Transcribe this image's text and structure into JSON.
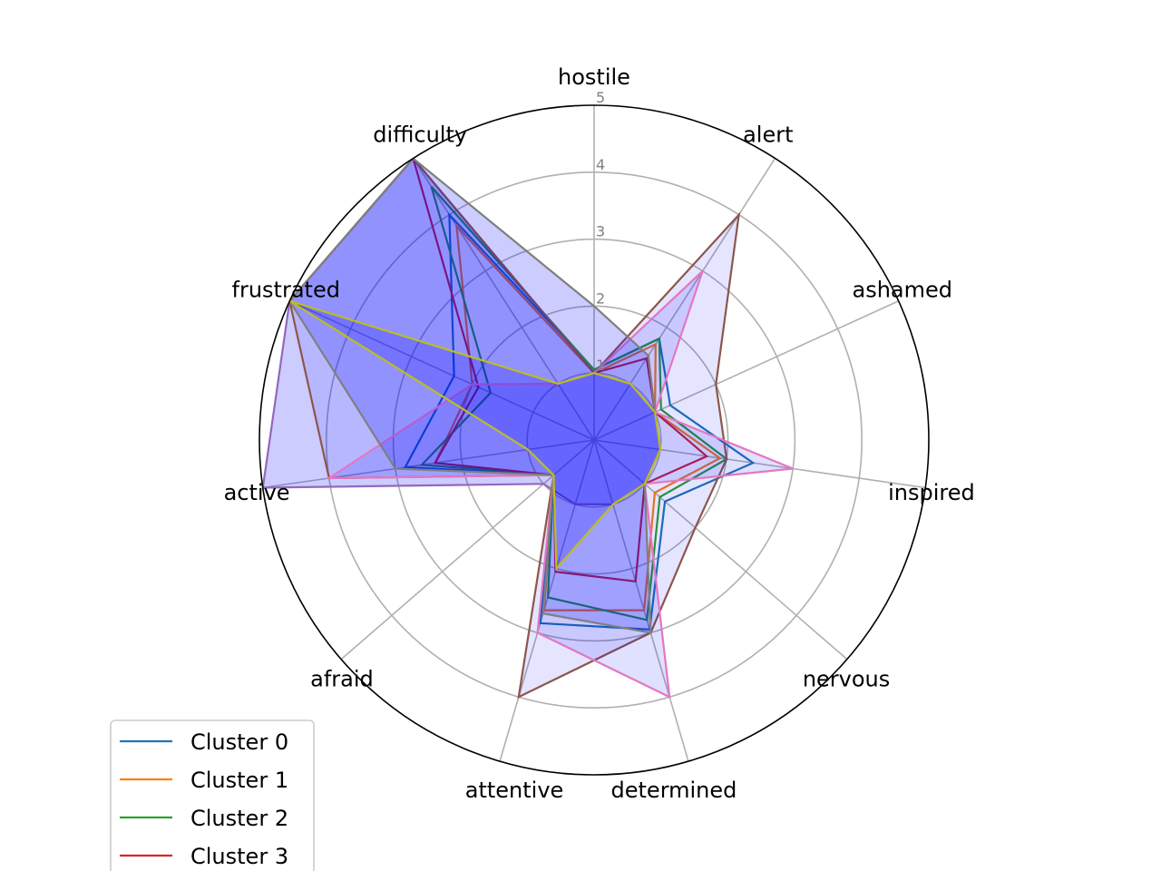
{
  "chart_data": {
    "type": "radar",
    "axes": [
      "hostile",
      "alert",
      "ashamed",
      "inspired",
      "nervous",
      "determined",
      "attentive",
      "afraid",
      "active",
      "frustrated",
      "difficulty"
    ],
    "rticks": [
      "1",
      "2",
      "3",
      "4",
      "5"
    ],
    "rlim": [
      0,
      5
    ],
    "grid": true,
    "legend_position": "lower-left",
    "series": [
      {
        "name": "Cluster 0",
        "color": "#1f77b4",
        "fill": false,
        "values": [
          1.05,
          1.8,
          1.25,
          2.4,
          1.4,
          2.95,
          2.85,
          0.8,
          2.85,
          2.3,
          4.0
        ]
      },
      {
        "name": "Cluster 1",
        "color": "#ff7f0e",
        "fill": false,
        "values": [
          1.0,
          1.7,
          1.0,
          1.9,
          1.2,
          2.65,
          2.65,
          0.8,
          2.4,
          2.0,
          3.8
        ]
      },
      {
        "name": "Cluster 2",
        "color": "#2ca02c",
        "fill": false,
        "values": [
          1.05,
          1.8,
          1.1,
          2.0,
          1.3,
          2.8,
          2.45,
          0.8,
          2.6,
          1.7,
          4.5
        ]
      },
      {
        "name": "Cluster 3",
        "color": "#d62728",
        "fill": false,
        "values": [
          1.0,
          1.45,
          1.0,
          1.7,
          1.0,
          2.2,
          2.05,
          0.8,
          2.4,
          1.9,
          5.0
        ]
      },
      {
        "name": "",
        "color": "#9467bd",
        "fill": true,
        "fillColor": "#0000ff",
        "fillOpacity": 0.2,
        "values": [
          1.0,
          1.0,
          1.0,
          1.0,
          1.0,
          1.0,
          1.0,
          1.0,
          5.0,
          5.0,
          5.0
        ]
      },
      {
        "name": "",
        "color": "#8c564b",
        "fill": true,
        "fillColor": "#0000ff",
        "fillOpacity": 0.1,
        "values": [
          1.0,
          4.0,
          2.0,
          2.0,
          2.0,
          3.0,
          4.0,
          0.8,
          4.0,
          5.0,
          5.0
        ]
      },
      {
        "name": "",
        "color": "#e377c2",
        "fill": true,
        "fillColor": "#0000ff",
        "fillOpacity": 0.12,
        "values": [
          1.0,
          3.0,
          1.0,
          3.0,
          1.0,
          4.0,
          3.0,
          0.8,
          4.0,
          2.0,
          1.0
        ]
      },
      {
        "name": "",
        "color": "#7f7f7f",
        "fill": true,
        "fillColor": "#0000ff",
        "fillOpacity": 0.2,
        "values": [
          2.0,
          1.5,
          1.0,
          1.0,
          1.0,
          3.0,
          2.7,
          0.8,
          3.0,
          5.0,
          5.0
        ]
      },
      {
        "name": "",
        "color": "#bcbd22",
        "fill": true,
        "fillColor": "#0000ff",
        "fillOpacity": 0.2,
        "values": [
          1.0,
          1.0,
          1.0,
          1.0,
          1.0,
          1.0,
          2.0,
          0.8,
          1.0,
          5.0,
          1.0
        ]
      }
    ]
  }
}
